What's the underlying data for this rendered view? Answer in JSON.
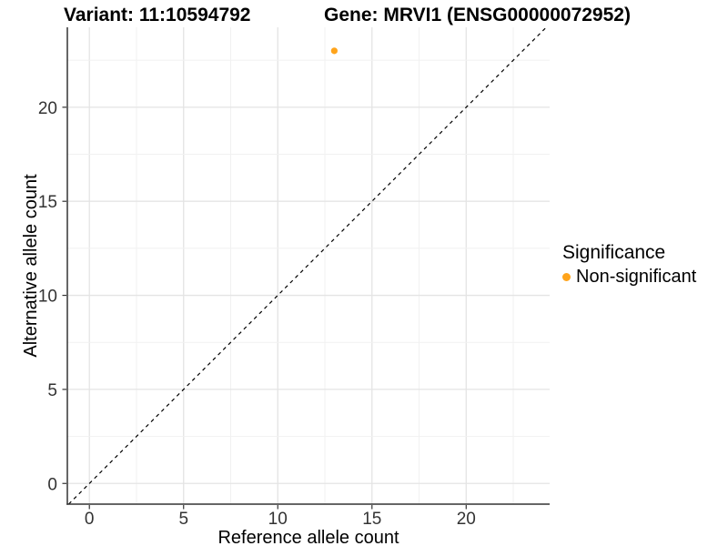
{
  "header": {
    "variant_title": "Variant: 11:10594792",
    "gene_title": "Gene: MRVI1 (ENSG00000072952)"
  },
  "chart_data": {
    "type": "scatter",
    "title": "Variant: 11:10594792 / Gene: MRVI1 (ENSG00000072952)",
    "xlabel": "Reference allele count",
    "ylabel": "Alternative allele count",
    "xlim": [
      -1.17,
      24.43
    ],
    "ylim": [
      -1.1,
      24.25
    ],
    "xticks": [
      0,
      5,
      10,
      15,
      20
    ],
    "yticks": [
      0,
      5,
      10,
      15,
      20
    ],
    "minor_step": 2.5,
    "grid": true,
    "series": [
      {
        "name": "Non-significant",
        "color": "#FFA41B",
        "points": [
          {
            "x": 13,
            "y": 23
          }
        ]
      }
    ],
    "reference_line": {
      "type": "identity y=x",
      "style": "dashed",
      "color": "#000000"
    },
    "legend": {
      "title": "Significance",
      "position": "right",
      "entries": [
        {
          "label": "Non-significant",
          "color": "#FFA41B"
        }
      ]
    }
  },
  "style": {
    "background": "#FFFFFF",
    "grid_major": "#E4E4E4",
    "grid_minor": "#F1F1F1",
    "axis_line": "#333333",
    "tick_color": "#333333",
    "tick_label_color": "#333333",
    "axis_title_color": "#000000",
    "point_color": "#FFA41B"
  }
}
